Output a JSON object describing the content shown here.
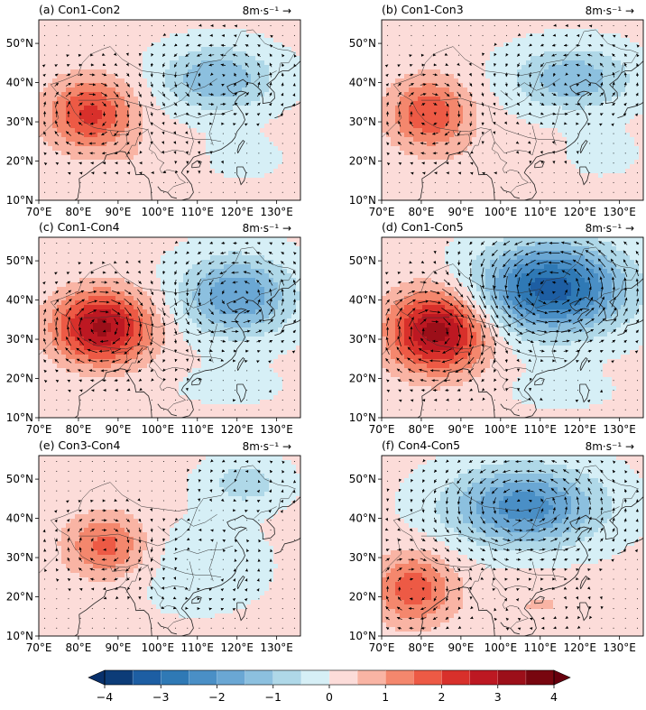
{
  "chart_data": {
    "type": "heatmap",
    "shared": {
      "lon_ticks": [
        "70°E",
        "80°E",
        "90°E",
        "100°E",
        "110°E",
        "120°E",
        "130°E"
      ],
      "lat_ticks": [
        "50°N",
        "40°N",
        "30°N",
        "20°N",
        "10°N"
      ],
      "lon_range": [
        70,
        136
      ],
      "lat_range": [
        10,
        56
      ],
      "vector_scale_label": "8m·s⁻¹",
      "vector_arrow_glyph": "→"
    },
    "panels": [
      {
        "title": "(a) Con1-Con2",
        "anomalies": [
          {
            "lon": 83,
            "lat": 32,
            "rx": 11,
            "ry": 9,
            "amp": 2.0
          },
          {
            "lon": 115,
            "lat": 41,
            "rx": 14,
            "ry": 8,
            "amp": -1.6
          },
          {
            "lon": 120,
            "lat": 21,
            "rx": 12,
            "ry": 6,
            "amp": -0.3
          },
          {
            "lon": 100,
            "lat": 20,
            "rx": 12,
            "ry": 5,
            "amp": 0.3
          }
        ]
      },
      {
        "title": "(b) Con1-Con3",
        "anomalies": [
          {
            "lon": 82,
            "lat": 32,
            "rx": 10,
            "ry": 9,
            "amp": 1.8
          },
          {
            "lon": 118,
            "lat": 41,
            "rx": 15,
            "ry": 8,
            "amp": -1.5
          },
          {
            "lon": 125,
            "lat": 22,
            "rx": 10,
            "ry": 6,
            "amp": -0.3
          },
          {
            "lon": 100,
            "lat": 20,
            "rx": 12,
            "ry": 5,
            "amp": 0.3
          }
        ]
      },
      {
        "title": "(c) Con1-Con4",
        "anomalies": [
          {
            "lon": 86,
            "lat": 33,
            "rx": 12,
            "ry": 9,
            "amp": 3.0
          },
          {
            "lon": 120,
            "lat": 41,
            "rx": 14,
            "ry": 10,
            "amp": -2.1
          },
          {
            "lon": 118,
            "lat": 18,
            "rx": 14,
            "ry": 5,
            "amp": -0.3
          }
        ]
      },
      {
        "title": "(d) Con1-Con5",
        "anomalies": [
          {
            "lon": 84,
            "lat": 32,
            "rx": 12,
            "ry": 10,
            "amp": 3.2
          },
          {
            "lon": 113,
            "lat": 43,
            "rx": 18,
            "ry": 11,
            "amp": -3.4
          },
          {
            "lon": 115,
            "lat": 17,
            "rx": 14,
            "ry": 5,
            "amp": -0.3
          }
        ]
      },
      {
        "title": "(e) Con3-Con4",
        "anomalies": [
          {
            "lon": 87,
            "lat": 33,
            "rx": 10,
            "ry": 8,
            "amp": 1.6
          },
          {
            "lon": 122,
            "lat": 49,
            "rx": 10,
            "ry": 6,
            "amp": -0.9
          },
          {
            "lon": 110,
            "lat": 28,
            "rx": 18,
            "ry": 12,
            "amp": -0.4
          }
        ]
      },
      {
        "title": "(f) Con4-Con5",
        "anomalies": [
          {
            "lon": 78,
            "lat": 22,
            "rx": 10,
            "ry": 9,
            "amp": 1.7
          },
          {
            "lon": 106,
            "lat": 43,
            "rx": 19,
            "ry": 10,
            "amp": -2.4
          },
          {
            "lon": 110,
            "lat": 18,
            "rx": 16,
            "ry": 7,
            "amp": 0.4
          }
        ]
      }
    ],
    "colorbar": {
      "ticks": [
        "−4",
        "−3",
        "−2",
        "−1",
        "0",
        "1",
        "2",
        "3",
        "4"
      ],
      "range": [
        -4,
        4
      ],
      "levels": [
        -4,
        -3.5,
        -3,
        -2.5,
        -2,
        -1.5,
        -1,
        -0.5,
        0,
        0.5,
        1,
        1.5,
        2,
        2.5,
        3,
        3.5,
        4
      ],
      "colors": [
        "#0c3c78",
        "#1d5ea3",
        "#2f79b5",
        "#4a8fc6",
        "#6aa7d4",
        "#8cc0df",
        "#afd8e8",
        "#d6eff6",
        "#fcdcd9",
        "#f9b4a4",
        "#f4876d",
        "#ed5a45",
        "#d8302b",
        "#bd1822",
        "#9c0f19",
        "#78060f"
      ],
      "extend_low": "#08306b",
      "extend_high": "#67000d"
    }
  }
}
